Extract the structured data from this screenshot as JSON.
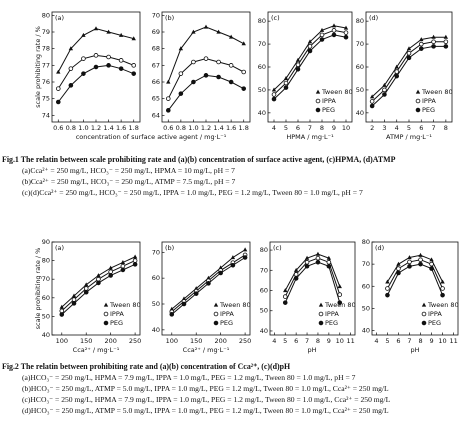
{
  "chart_data": [
    {
      "type": "line",
      "label": "(a)",
      "ylabel": "scale prohibiting rate / %",
      "xlabel": "concentration of surface active agent / mg·L⁻¹",
      "x": [
        0.6,
        0.8,
        1.0,
        1.2,
        1.4,
        1.6,
        1.8
      ],
      "xlim": [
        0.5,
        1.9
      ],
      "xticks": [
        0.6,
        0.8,
        {
          "value": 1,
          "label": "1.0"
        },
        1.2,
        1.4,
        1.6,
        1.8
      ],
      "ylim": [
        73.6,
        80.2
      ],
      "yticks": [
        74,
        75,
        76,
        77,
        78,
        79,
        80
      ],
      "series": [
        {
          "name": "Tween 80",
          "color": "#111",
          "marker": "triangle",
          "values": [
            76.6,
            78.0,
            78.8,
            79.2,
            79.0,
            78.8,
            78.6
          ]
        },
        {
          "name": "IPPA",
          "color": "#111",
          "marker": "open-circle",
          "values": [
            75.6,
            76.8,
            77.4,
            77.6,
            77.5,
            77.3,
            77.0
          ]
        },
        {
          "name": "PEG",
          "color": "#111",
          "marker": "circle",
          "values": [
            74.8,
            75.8,
            76.5,
            76.9,
            77.0,
            76.8,
            76.5
          ]
        }
      ]
    },
    {
      "type": "line",
      "label": "(b)",
      "x": [
        0.6,
        0.8,
        1.0,
        1.2,
        1.4,
        1.6,
        1.8
      ],
      "xlim": [
        0.5,
        1.9
      ],
      "xticks": [
        0.6,
        0.8,
        {
          "value": 1,
          "label": "1.0"
        },
        1.2,
        1.4,
        1.6,
        1.8
      ],
      "ylim": [
        63.6,
        70.2
      ],
      "yticks": [
        64,
        65,
        66,
        67,
        68,
        69,
        70
      ],
      "series": [
        {
          "name": "Tween 80",
          "color": "#111",
          "marker": "triangle",
          "values": [
            66.0,
            68.0,
            69.0,
            69.3,
            69.0,
            68.7,
            68.3
          ]
        },
        {
          "name": "IPPA",
          "color": "#111",
          "marker": "open-circle",
          "values": [
            65.0,
            66.5,
            67.2,
            67.4,
            67.2,
            67.0,
            66.6
          ]
        },
        {
          "name": "PEG",
          "color": "#111",
          "marker": "circle",
          "values": [
            64.3,
            65.3,
            66.0,
            66.4,
            66.3,
            66.0,
            65.6
          ]
        }
      ]
    },
    {
      "type": "line",
      "label": "(c)",
      "xlabel": "HPMA / mg·L⁻¹",
      "legend": "lower right",
      "x": [
        4,
        5,
        6,
        7,
        8,
        9,
        10
      ],
      "xlim": [
        3.5,
        10.5
      ],
      "xticks": [
        4,
        5,
        6,
        7,
        8,
        9,
        10
      ],
      "ylim": [
        36,
        84
      ],
      "yticks": [
        40,
        50,
        60,
        70,
        80
      ],
      "series": [
        {
          "name": "Tween 80",
          "color": "#111",
          "marker": "triangle",
          "values": [
            50,
            55,
            63,
            71,
            76,
            78,
            77
          ]
        },
        {
          "name": "IPPA",
          "color": "#111",
          "marker": "open-circle",
          "values": [
            48,
            53,
            61,
            69,
            74,
            76,
            75
          ]
        },
        {
          "name": "PEG",
          "color": "#111",
          "marker": "circle",
          "values": [
            46,
            51,
            59,
            67,
            72,
            74,
            73
          ]
        }
      ]
    },
    {
      "type": "line",
      "label": "(d)",
      "xlabel": "ATMP / mg·L⁻¹",
      "legend": "lower right",
      "x": [
        2,
        3,
        4,
        5,
        6,
        7,
        8
      ],
      "xlim": [
        1.5,
        8.5
      ],
      "xticks": [
        2,
        3,
        4,
        5,
        6,
        7,
        8
      ],
      "ylim": [
        36,
        84
      ],
      "yticks": [
        40,
        50,
        60,
        70,
        80
      ],
      "series": [
        {
          "name": "Tween 80",
          "color": "#111",
          "marker": "triangle",
          "values": [
            47,
            52,
            60,
            68,
            72,
            73,
            73
          ]
        },
        {
          "name": "IPPA",
          "color": "#111",
          "marker": "open-circle",
          "values": [
            45,
            50,
            58,
            66,
            70,
            71,
            71
          ]
        },
        {
          "name": "PEG",
          "color": "#111",
          "marker": "circle",
          "values": [
            43,
            48,
            56,
            64,
            68,
            69,
            69
          ]
        }
      ]
    },
    {
      "type": "line",
      "label": "(a)",
      "ylabel": "scale prohibiting rate / %",
      "xlabel": "Cca²⁺ / mg·L⁻¹",
      "legend": "lower right",
      "x": [
        100,
        125,
        150,
        175,
        200,
        225,
        250
      ],
      "xlim": [
        80,
        260
      ],
      "xticks": [
        100,
        150,
        200,
        250
      ],
      "ylim": [
        40,
        90
      ],
      "yticks": [
        40,
        50,
        60,
        70,
        80,
        90
      ],
      "series": [
        {
          "name": "Tween 80",
          "color": "#111",
          "marker": "triangle",
          "values": [
            55,
            61,
            67,
            72,
            76,
            79,
            82
          ]
        },
        {
          "name": "IPPA",
          "color": "#111",
          "marker": "open-circle",
          "values": [
            53,
            59,
            65,
            70,
            74,
            77,
            80
          ]
        },
        {
          "name": "PEG",
          "color": "#111",
          "marker": "circle",
          "values": [
            51,
            57,
            63,
            68,
            72,
            75,
            78
          ]
        }
      ]
    },
    {
      "type": "line",
      "label": "(b)",
      "xlabel": "Cca²⁺ / mg·L⁻¹",
      "legend": "lower right",
      "x": [
        100,
        125,
        150,
        175,
        200,
        225,
        250
      ],
      "xlim": [
        80,
        260
      ],
      "xticks": [
        100,
        150,
        200,
        250
      ],
      "ylim": [
        38,
        74
      ],
      "yticks": [
        40,
        50,
        60,
        70
      ],
      "series": [
        {
          "name": "Tween 80",
          "color": "#111",
          "marker": "triangle",
          "values": [
            48,
            52,
            56,
            60,
            64,
            68,
            71
          ]
        },
        {
          "name": "IPPA",
          "color": "#111",
          "marker": "open-circle",
          "values": [
            47,
            51,
            55,
            59,
            63,
            66,
            69
          ]
        },
        {
          "name": "PEG",
          "color": "#111",
          "marker": "circle",
          "values": [
            46,
            50,
            54,
            58,
            62,
            65,
            68
          ]
        }
      ]
    },
    {
      "type": "line",
      "label": "(c)",
      "xlabel": "pH",
      "legend": "lower right",
      "x": [
        5,
        6,
        7,
        8,
        9,
        10
      ],
      "xlim": [
        3.6,
        11.4
      ],
      "xticks": [
        4,
        5,
        6,
        7,
        8,
        9,
        10,
        11
      ],
      "ylim": [
        38,
        84
      ],
      "yticks": [
        40,
        50,
        60,
        70,
        80
      ],
      "series": [
        {
          "name": "Tween 80",
          "color": "#111",
          "marker": "triangle",
          "values": [
            60,
            70,
            76,
            78,
            76,
            62
          ]
        },
        {
          "name": "IPPA",
          "color": "#111",
          "marker": "open-circle",
          "values": [
            57,
            68,
            74,
            76,
            74,
            58
          ]
        },
        {
          "name": "PEG",
          "color": "#111",
          "marker": "circle",
          "values": [
            54,
            66,
            72,
            74,
            72,
            54
          ]
        }
      ]
    },
    {
      "type": "line",
      "label": "(d)",
      "xlabel": "pH",
      "legend": "lower right",
      "x": [
        5,
        6,
        7,
        8,
        9,
        10
      ],
      "xlim": [
        3.6,
        11.4
      ],
      "xticks": [
        4,
        5,
        6,
        7,
        8,
        9,
        10,
        11
      ],
      "ylim": [
        38,
        80
      ],
      "yticks": [
        40,
        50,
        60,
        70,
        80
      ],
      "series": [
        {
          "name": "Tween 80",
          "color": "#111",
          "marker": "triangle",
          "values": [
            62,
            70,
            73,
            74,
            72,
            62
          ]
        },
        {
          "name": "IPPA",
          "color": "#111",
          "marker": "open-circle",
          "values": [
            59,
            68,
            71,
            72,
            70,
            59
          ]
        },
        {
          "name": "PEG",
          "color": "#111",
          "marker": "circle",
          "values": [
            56,
            66,
            69,
            70,
            68,
            56
          ]
        }
      ]
    }
  ],
  "captions": {
    "figure1": {
      "title": "Fig.1 The relatin between scale prohibiting rate and (a)(b) concentration of surface active agent, (c)HPMA, (d)ATMP",
      "lines": [
        "(a)Cca²⁺ = 250 mg/L, HCO₃⁻ = 250 mg/L, HPMA = 10 mg/L, pH = 7",
        "(b)Cca²⁺ = 250 mg/L, HCO₃⁻ = 250 mg/L, ATMP = 7.5 mg/L, pH = 7",
        "(c)(d)Cca²⁺ = 250 mg/L, HCO₃⁻ = 250 mg/L, IPPA = 1.0 mg/L, PEG = 1.2 mg/L, Tween 80 = 1.0 mg/L, pH = 7"
      ]
    },
    "figure2": {
      "title": "Fig.2 The relatin between prohibiting rate and (a)(b) concentration of Cca²⁺, (c)(d)pH",
      "lines": [
        "(a)HCO₃⁻ = 250 mg/L, HPMA = 7.9 mg/L, IPPA = 1.0 mg/L, PEG = 1.2 mg/L, Tween 80 = 1.0 mg/L, pH = 7",
        "(b)HCO₃⁻ = 250 mg/L, ATMP = 5.0 mg/L, IPPA = 1.0 mg/L, PEG = 1.2 mg/L, Tween 80 = 1.0 mg/L, Cca²⁺ = 250 mg/L",
        "(c)HCO₃⁻ = 250 mg/L, HPMA = 7.9 mg/L, IPPA = 1.0 mg/L, PEG = 1.2 mg/L, Tween 80 = 1.0 mg/L, Cca²⁺ = 250 mg/L",
        "(d)HCO₃⁻ = 250 mg/L, ATMP = 5.0 mg/L, IPPA = 1.0 mg/L, PEG = 1.2 mg/L, Tween 80 = 1.0 mg/L, Cca²⁺ = 250 mg/L"
      ]
    }
  }
}
